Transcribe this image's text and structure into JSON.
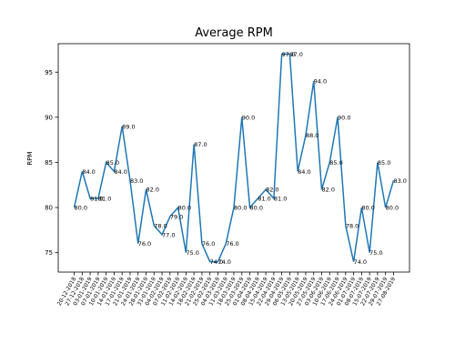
{
  "chart_data": {
    "type": "line",
    "title": "Average RPM",
    "y_label": "RPM",
    "categories": [
      "20-12-2018",
      "27-12-2018",
      "03-01-2019",
      "07-01-2019",
      "10-01-2019",
      "14-01-2019",
      "17-01-2019",
      "21-01-2019",
      "24-01-2019",
      "28-01-2019",
      "31-01-2019",
      "04-02-2019",
      "07-02-2019",
      "11-02-2019",
      "14-02-2019",
      "18-02-2019",
      "21-02-2019",
      "25-02-2019",
      "04-03-2019",
      "11-03-2019",
      "18-03-2019",
      "25-03-2019",
      "01-04-2019",
      "08-04-2019",
      "15-04-2019",
      "22-04-2019",
      "29-04-2019",
      "06-05-2019",
      "13-05-2019",
      "20-05-2019",
      "27-05-2019",
      "03-06-2019",
      "10-06-2019",
      "17-06-2019",
      "24-06-2019",
      "01-07-2019",
      "08-07-2019",
      "15-07-2019",
      "22-07-2019",
      "29-07-2019",
      "27-08-2019"
    ],
    "series": [
      {
        "name": "RPM",
        "color": "#1f77b4",
        "values": [
          80,
          84,
          81,
          81,
          85,
          84,
          89,
          83,
          76,
          82,
          78,
          77,
          79,
          80,
          75,
          87,
          76,
          74,
          74,
          76,
          80,
          90,
          80,
          81,
          82,
          81,
          97,
          97,
          84,
          88,
          94,
          82,
          85,
          90,
          78,
          74,
          80,
          75,
          85,
          80,
          83
        ],
        "value_labels": [
          "80.0",
          "84.0",
          "81.0",
          "81.0",
          "85.0",
          "84.0",
          "89.0",
          "83.0",
          "76.0",
          "82.0",
          "78.0",
          "77.0",
          "79.0",
          "80.0",
          "75.0",
          "87.0",
          "76.0",
          "74.0",
          "74.0",
          "76.0",
          "80.0",
          "90.0",
          "80.0",
          "81.0",
          "82.0",
          "81.0",
          "97.0",
          "97.0",
          "84.0",
          "88.0",
          "94.0",
          "82.0",
          "85.0",
          "90.0",
          "78.0",
          "74.0",
          "80.0",
          "75.0",
          "85.0",
          "80.0",
          "83.0"
        ]
      }
    ],
    "ylim": [
      72.85,
      98.15
    ],
    "yticks": [
      75,
      80,
      85,
      90,
      95
    ],
    "grid": false
  }
}
